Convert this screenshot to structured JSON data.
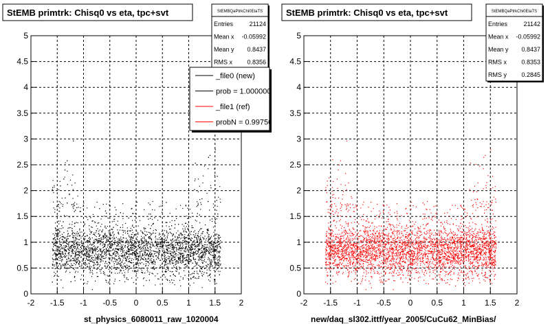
{
  "panels": [
    {
      "title": "StEMB primtrk: Chisq0 vs eta, tpc+svt",
      "stats": {
        "name": "StEMBQaPtrkChi0EtaTS",
        "rows": [
          {
            "label": "Entries",
            "value": "21124"
          },
          {
            "label": "Mean x",
            "value": "-0.05992"
          },
          {
            "label": "Mean y",
            "value": "0.8437"
          },
          {
            "label": "RMS x",
            "value": "0.8356"
          }
        ]
      },
      "legend": {
        "entries": [
          {
            "label": "_file0 (new)",
            "color": "#000000"
          },
          {
            "label": "prob = 1.000000",
            "color": "#000000"
          },
          {
            "label": "_file1 (ref)",
            "color": "#ff0000"
          },
          {
            "label": "probN = 0.997500",
            "color": "#ff0000"
          }
        ]
      },
      "caption": "st_physics_6080011_raw_1020004",
      "marker_color": "#000000"
    },
    {
      "title": "StEMB primtrk: Chisq0 vs eta, tpc+svt",
      "stats": {
        "name": "StEMBQaPtrkChi0EtaTS",
        "rows": [
          {
            "label": "Entries",
            "value": "21142"
          },
          {
            "label": "Mean x",
            "value": "-0.05992"
          },
          {
            "label": "Mean y",
            "value": "0.8437"
          },
          {
            "label": "RMS x",
            "value": "0.8353"
          },
          {
            "label": "RMS y",
            "value": "0.2845"
          }
        ]
      },
      "caption": "new/daq_sl302.ittf/year_2005/CuCu62_MinBias/",
      "marker_color": "#ff0000"
    }
  ],
  "chart_data": [
    {
      "type": "scatter",
      "title": "StEMB primtrk: Chisq0 vs eta, tpc+svt",
      "xlabel": "",
      "ylabel": "",
      "xlim": [
        -2,
        2
      ],
      "ylim": [
        0,
        5
      ],
      "x_ticks": [
        "-2",
        "-1.5",
        "-1",
        "-0.5",
        "0",
        "0.5",
        "1",
        "1.5",
        "2"
      ],
      "y_ticks": [
        "0",
        "0.5",
        "1",
        "1.5",
        "2",
        "2.5",
        "3",
        "3.5",
        "4",
        "4.5",
        "5"
      ],
      "grid": true,
      "series": [
        {
          "name": "_file0 (new)",
          "color": "#000000",
          "x_range": [
            -1.6,
            1.6
          ],
          "y_core": 0.85,
          "y_spread": 0.28
        }
      ]
    },
    {
      "type": "scatter",
      "title": "StEMB primtrk: Chisq0 vs eta, tpc+svt",
      "xlabel": "",
      "ylabel": "",
      "xlim": [
        -2,
        2
      ],
      "ylim": [
        0,
        5
      ],
      "x_ticks": [
        "-2",
        "-1.5",
        "-1",
        "-0.5",
        "0",
        "0.5",
        "1",
        "1.5",
        "2"
      ],
      "y_ticks": [
        "0",
        "0.5",
        "1",
        "1.5",
        "2",
        "2.5",
        "3",
        "3.5",
        "4",
        "4.5",
        "5"
      ],
      "grid": true,
      "series": [
        {
          "name": "_file1 (ref)",
          "color": "#ff0000",
          "x_range": [
            -1.6,
            1.6
          ],
          "y_core": 0.85,
          "y_spread": 0.28
        }
      ]
    }
  ]
}
